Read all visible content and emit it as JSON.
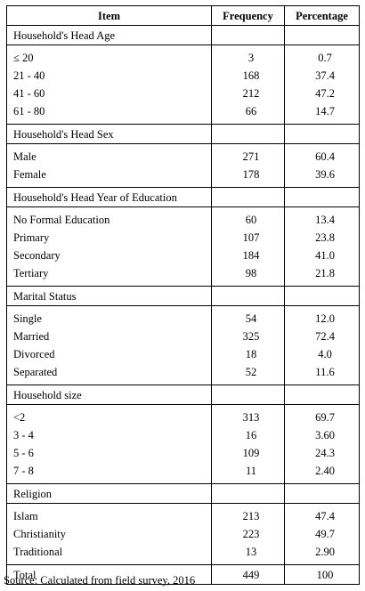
{
  "header": {
    "item": "Item",
    "frequency": "Frequency",
    "percentage": "Percentage"
  },
  "sections": [
    {
      "title": "Household's Head Age",
      "rows": [
        {
          "label": "≤ 20",
          "frequency": "3",
          "percentage": "0.7"
        },
        {
          "label": "21 - 40",
          "frequency": "168",
          "percentage": "37.4"
        },
        {
          "label": "41 - 60",
          "frequency": "212",
          "percentage": "47.2"
        },
        {
          "label": "61 - 80",
          "frequency": "66",
          "percentage": "14.7"
        }
      ]
    },
    {
      "title": "Household's Head Sex",
      "rows": [
        {
          "label": "Male",
          "frequency": "271",
          "percentage": "60.4"
        },
        {
          "label": "Female",
          "frequency": "178",
          "percentage": "39.6"
        }
      ]
    },
    {
      "title": "Household's Head Year of Education",
      "rows": [
        {
          "label": "No Formal Education",
          "frequency": "60",
          "percentage": "13.4"
        },
        {
          "label": "Primary",
          "frequency": "107",
          "percentage": "23.8"
        },
        {
          "label": "Secondary",
          "frequency": "184",
          "percentage": "41.0"
        },
        {
          "label": "Tertiary",
          "frequency": "98",
          "percentage": "21.8"
        }
      ]
    },
    {
      "title": "Marital Status",
      "rows": [
        {
          "label": "Single",
          "frequency": "54",
          "percentage": "12.0"
        },
        {
          "label": "Married",
          "frequency": "325",
          "percentage": "72.4"
        },
        {
          "label": "Divorced",
          "frequency": "18",
          "percentage": "4.0"
        },
        {
          "label": "Separated",
          "frequency": "52",
          "percentage": "11.6"
        }
      ]
    },
    {
      "title": "Household size",
      "rows": [
        {
          "label": "<2",
          "frequency": "313",
          "percentage": "69.7"
        },
        {
          "label": "3 - 4",
          "frequency": "16",
          "percentage": "3.60"
        },
        {
          "label": "5 - 6",
          "frequency": "109",
          "percentage": "24.3"
        },
        {
          "label": "7 - 8",
          "frequency": "11",
          "percentage": "2.40"
        }
      ]
    },
    {
      "title": "Religion",
      "rows": [
        {
          "label": "Islam",
          "frequency": "213",
          "percentage": "47.4"
        },
        {
          "label": "Christianity",
          "frequency": "223",
          "percentage": "49.7"
        },
        {
          "label": "Traditional",
          "frequency": "13",
          "percentage": "2.90"
        }
      ]
    }
  ],
  "total": {
    "label": "Total",
    "frequency": "449",
    "percentage": "100"
  },
  "source": "Source: Calculated from field survey, 2016"
}
